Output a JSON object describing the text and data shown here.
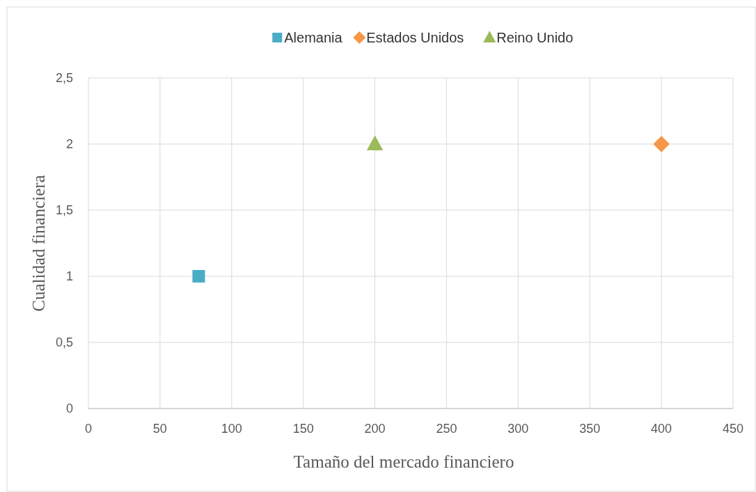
{
  "chart_data": {
    "type": "scatter",
    "xlabel": "Tamaño del mercado financiero",
    "ylabel": "Cualidad financiera",
    "series": [
      {
        "name": "Alemania",
        "color": "#4bacc6",
        "marker": "square",
        "x": [
          77
        ],
        "values": [
          1
        ]
      },
      {
        "name": "Estados Unidos",
        "color": "#f79646",
        "marker": "diamond",
        "x": [
          400
        ],
        "values": [
          2
        ]
      },
      {
        "name": "Reino Unido",
        "color": "#9bbb59",
        "marker": "triangle",
        "x": [
          200
        ],
        "values": [
          2
        ]
      }
    ],
    "xlim": [
      0,
      450
    ],
    "xticks": [
      0,
      50,
      100,
      150,
      200,
      250,
      300,
      350,
      400,
      450
    ],
    "ylim": [
      0,
      2.5
    ],
    "yticks": [
      0,
      {
        "value": 0.5,
        "label": "0,5"
      },
      1,
      {
        "value": 1.5,
        "label": "1,5"
      },
      2,
      {
        "value": 2.5,
        "label": "2,5"
      }
    ],
    "grid": true,
    "legend": "top"
  }
}
